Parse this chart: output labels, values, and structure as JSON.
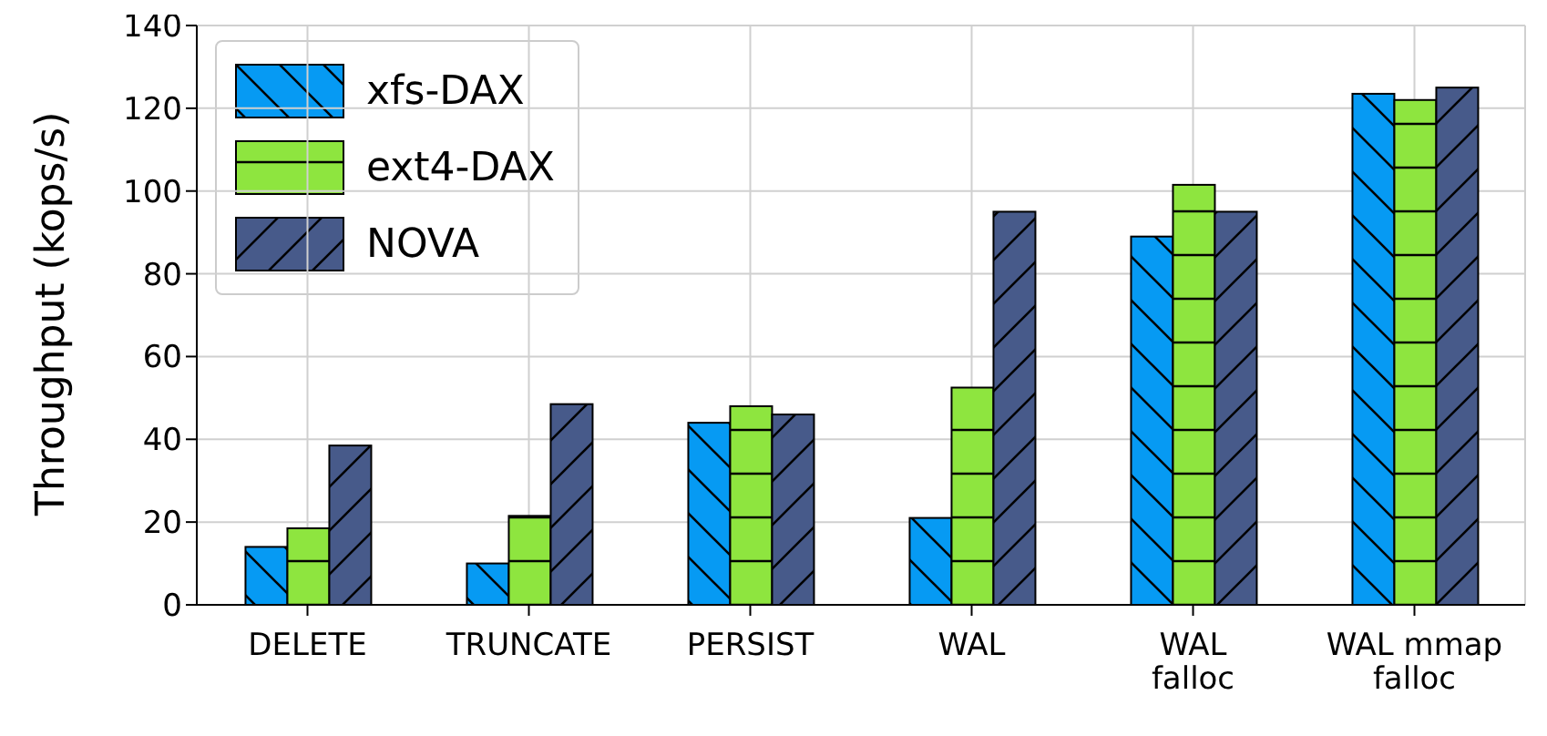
{
  "chart_data": {
    "type": "bar",
    "ylabel": "Throughput (kops/s)",
    "categories": [
      "DELETE",
      "TRUNCATE",
      "PERSIST",
      "WAL",
      "WAL falloc",
      "WAL mmap falloc"
    ],
    "series": [
      {
        "name": "xfs-DAX",
        "color": "#069af3",
        "values": [
          14,
          10,
          44,
          21,
          89,
          123.5
        ]
      },
      {
        "name": "ext4-DAX",
        "color": "#8ee53f",
        "values": [
          18.5,
          21.5,
          48,
          52.5,
          101.5,
          122
        ]
      },
      {
        "name": "NOVA",
        "color": "#475a8a",
        "values": [
          38.5,
          48.5,
          46,
          95,
          95,
          125
        ]
      }
    ],
    "ylim": [
      0,
      140
    ],
    "yticks": [
      0,
      20,
      40,
      60,
      80,
      100,
      120,
      140
    ],
    "grid": true,
    "legend": "top left"
  }
}
